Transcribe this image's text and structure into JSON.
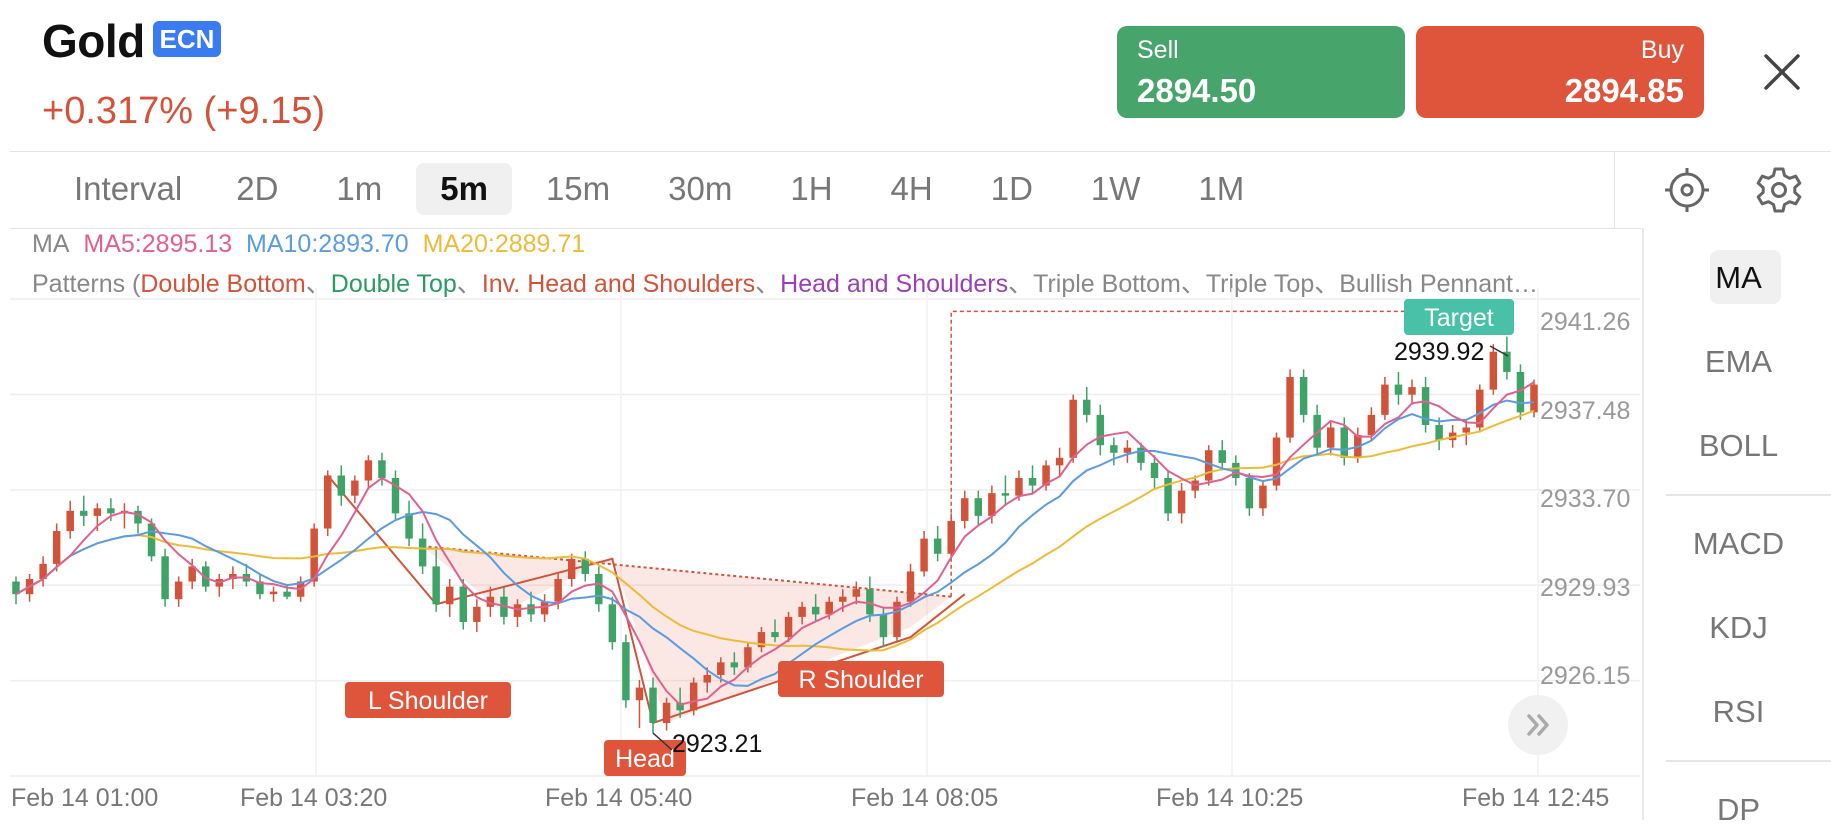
{
  "header": {
    "symbol": "Gold",
    "badge": "ECN",
    "change": "+0.317% (+9.15)",
    "sell_label": "Sell",
    "sell_price": "2894.50",
    "buy_label": "Buy",
    "buy_price": "2894.85",
    "close_icon": "close-icon",
    "colors": {
      "sell": "#47a56c",
      "buy": "#df553b",
      "badge": "#3a7bf0",
      "change": "#d0533a"
    }
  },
  "intervals": {
    "label": "Interval",
    "items": [
      "2D",
      "1m",
      "5m",
      "15m",
      "30m",
      "1H",
      "4H",
      "1D",
      "1W",
      "1M"
    ],
    "selected": "5m"
  },
  "toolbar_icons": [
    "crosshair-target-icon",
    "gear-icon"
  ],
  "indicator_legend": {
    "ma_label": "MA",
    "ma5": "MA5:2895.13",
    "ma10": "MA10:2893.70",
    "ma20": "MA20:2889.71",
    "colors": {
      "ma5": "#e0608f",
      "ma10": "#5b9be0",
      "ma20": "#edbb3a"
    }
  },
  "patterns_legend": {
    "prefix": "Patterns (",
    "double_bottom": "Double Bottom",
    "sep1": "、",
    "double_top": "Double Top",
    "sep2": "、",
    "inv_hs": "Inv. Head and Shoulders",
    "sep3": "、",
    "hs": "Head and Shoulders",
    "rest": "、Triple Bottom、Triple Top、Bullish Pennant…"
  },
  "price_axis": [
    "2941.26",
    "2937.48",
    "2933.70",
    "2929.93",
    "2926.15"
  ],
  "time_axis": [
    "Feb 14 01:00",
    "Feb 14 03:20",
    "Feb 14 05:40",
    "Feb 14 08:05",
    "Feb 14 10:25",
    "Feb 14 12:45"
  ],
  "pattern_annotations": {
    "left_shoulder": "L Shoulder",
    "head": "Head",
    "right_shoulder": "R Shoulder",
    "target": "Target",
    "low_value": "2923.21",
    "target_value": "2939.92"
  },
  "sidebar": {
    "items": [
      "MA",
      "EMA",
      "BOLL",
      "MACD",
      "KDJ",
      "RSI",
      "DP"
    ],
    "selected": "MA"
  },
  "chart_data": {
    "type": "candlestick",
    "ylim": [
      2921.5,
      2943.2
    ],
    "candles": [
      [
        2929.2,
        2929.4,
        2928.3,
        2928.7
      ],
      [
        2928.7,
        2929.5,
        2928.4,
        2929.3
      ],
      [
        2929.3,
        2930.2,
        2929.0,
        2929.9
      ],
      [
        2929.9,
        2931.5,
        2929.6,
        2931.2
      ],
      [
        2931.2,
        2932.4,
        2930.9,
        2932.0
      ],
      [
        2932.0,
        2932.6,
        2931.4,
        2931.8
      ],
      [
        2931.8,
        2932.3,
        2931.2,
        2932.1
      ],
      [
        2932.1,
        2932.5,
        2931.6,
        2931.9
      ],
      [
        2931.9,
        2932.3,
        2931.3,
        2932.0
      ],
      [
        2932.0,
        2932.2,
        2931.1,
        2931.5
      ],
      [
        2931.5,
        2931.7,
        2930.0,
        2930.2
      ],
      [
        2930.2,
        2930.5,
        2928.2,
        2928.5
      ],
      [
        2928.5,
        2929.4,
        2928.2,
        2929.2
      ],
      [
        2929.2,
        2930.1,
        2928.9,
        2929.8
      ],
      [
        2929.8,
        2930.0,
        2928.8,
        2929.0
      ],
      [
        2929.0,
        2929.5,
        2928.6,
        2929.3
      ],
      [
        2929.3,
        2929.8,
        2928.9,
        2929.5
      ],
      [
        2929.5,
        2929.9,
        2929.0,
        2929.2
      ],
      [
        2929.2,
        2929.5,
        2928.5,
        2928.7
      ],
      [
        2928.7,
        2929.0,
        2928.4,
        2928.8
      ],
      [
        2928.8,
        2929.1,
        2928.5,
        2928.6
      ],
      [
        2928.6,
        2929.4,
        2928.4,
        2929.2
      ],
      [
        2929.2,
        2931.5,
        2929.0,
        2931.3
      ],
      [
        2931.3,
        2933.6,
        2931.0,
        2933.4
      ],
      [
        2933.4,
        2933.8,
        2932.2,
        2932.6
      ],
      [
        2932.6,
        2933.4,
        2932.3,
        2933.2
      ],
      [
        2933.2,
        2934.2,
        2932.9,
        2934.0
      ],
      [
        2934.0,
        2934.3,
        2933.0,
        2933.3
      ],
      [
        2933.3,
        2933.6,
        2931.6,
        2931.9
      ],
      [
        2931.9,
        2932.4,
        2930.6,
        2930.9
      ],
      [
        2930.9,
        2931.5,
        2929.5,
        2929.8
      ],
      [
        2929.8,
        2930.5,
        2928.0,
        2928.3
      ],
      [
        2928.3,
        2929.3,
        2927.8,
        2929.0
      ],
      [
        2929.0,
        2929.3,
        2927.3,
        2927.6
      ],
      [
        2927.6,
        2928.5,
        2927.2,
        2928.2
      ],
      [
        2928.2,
        2929.0,
        2927.8,
        2928.6
      ],
      [
        2928.6,
        2929.0,
        2927.5,
        2927.8
      ],
      [
        2927.8,
        2928.5,
        2927.4,
        2928.3
      ],
      [
        2928.3,
        2928.8,
        2927.6,
        2927.9
      ],
      [
        2927.9,
        2928.7,
        2927.6,
        2928.4
      ],
      [
        2928.4,
        2929.5,
        2928.1,
        2929.3
      ],
      [
        2929.3,
        2930.3,
        2929.0,
        2930.1
      ],
      [
        2930.1,
        2930.4,
        2929.2,
        2929.5
      ],
      [
        2929.5,
        2929.8,
        2928.0,
        2928.3
      ],
      [
        2928.3,
        2928.6,
        2926.5,
        2926.8
      ],
      [
        2926.8,
        2927.1,
        2924.2,
        2924.5
      ],
      [
        2924.5,
        2925.3,
        2923.4,
        2925.0
      ],
      [
        2925.0,
        2925.4,
        2923.2,
        2923.6
      ],
      [
        2923.6,
        2924.6,
        2923.3,
        2924.4
      ],
      [
        2924.4,
        2925.0,
        2923.8,
        2924.1
      ],
      [
        2924.1,
        2925.4,
        2923.9,
        2925.2
      ],
      [
        2925.2,
        2925.8,
        2924.8,
        2925.5
      ],
      [
        2925.5,
        2926.2,
        2925.2,
        2926.0
      ],
      [
        2926.0,
        2926.4,
        2925.5,
        2925.8
      ],
      [
        2925.8,
        2926.8,
        2925.6,
        2926.6
      ],
      [
        2926.6,
        2927.4,
        2926.4,
        2927.2
      ],
      [
        2927.2,
        2927.7,
        2926.8,
        2927.0
      ],
      [
        2927.0,
        2928.0,
        2926.8,
        2927.8
      ],
      [
        2927.8,
        2928.4,
        2927.5,
        2928.2
      ],
      [
        2928.2,
        2928.7,
        2927.6,
        2927.9
      ],
      [
        2927.9,
        2928.6,
        2927.7,
        2928.4
      ],
      [
        2928.4,
        2928.9,
        2928.0,
        2928.6
      ],
      [
        2928.6,
        2929.2,
        2928.3,
        2928.9
      ],
      [
        2928.9,
        2929.4,
        2927.6,
        2927.9
      ],
      [
        2927.9,
        2928.2,
        2926.6,
        2927.0
      ],
      [
        2927.0,
        2928.6,
        2926.8,
        2928.4
      ],
      [
        2928.4,
        2929.9,
        2928.2,
        2929.6
      ],
      [
        2929.6,
        2931.2,
        2929.4,
        2930.9
      ],
      [
        2930.9,
        2931.4,
        2930.0,
        2930.3
      ],
      [
        2930.3,
        2931.9,
        2930.1,
        2931.6
      ],
      [
        2931.6,
        2932.8,
        2931.3,
        2932.5
      ],
      [
        2932.5,
        2932.8,
        2931.4,
        2931.8
      ],
      [
        2931.8,
        2933.0,
        2931.5,
        2932.7
      ],
      [
        2932.7,
        2933.4,
        2932.2,
        2932.6
      ],
      [
        2932.6,
        2933.6,
        2932.4,
        2933.3
      ],
      [
        2933.3,
        2933.8,
        2932.7,
        2933.0
      ],
      [
        2933.0,
        2934.0,
        2932.8,
        2933.8
      ],
      [
        2933.8,
        2934.5,
        2933.4,
        2934.1
      ],
      [
        2934.1,
        2936.6,
        2933.9,
        2936.4
      ],
      [
        2936.4,
        2936.9,
        2935.5,
        2935.8
      ],
      [
        2935.8,
        2936.2,
        2934.2,
        2934.6
      ],
      [
        2934.6,
        2934.9,
        2933.8,
        2934.3
      ],
      [
        2934.3,
        2934.8,
        2933.9,
        2934.5
      ],
      [
        2934.5,
        2934.7,
        2933.6,
        2933.9
      ],
      [
        2933.9,
        2934.2,
        2932.9,
        2933.3
      ],
      [
        2933.3,
        2933.6,
        2931.6,
        2931.9
      ],
      [
        2931.9,
        2933.1,
        2931.5,
        2932.8
      ],
      [
        2932.8,
        2933.4,
        2932.5,
        2933.2
      ],
      [
        2933.2,
        2934.6,
        2933.0,
        2934.4
      ],
      [
        2934.4,
        2934.8,
        2933.6,
        2933.9
      ],
      [
        2933.9,
        2934.2,
        2933.0,
        2933.3
      ],
      [
        2933.3,
        2933.5,
        2931.8,
        2932.1
      ],
      [
        2932.1,
        2933.2,
        2931.8,
        2933.0
      ],
      [
        2933.0,
        2935.1,
        2932.8,
        2934.9
      ],
      [
        2934.9,
        2937.6,
        2934.7,
        2937.3
      ],
      [
        2937.3,
        2937.6,
        2935.5,
        2935.8
      ],
      [
        2935.8,
        2936.2,
        2934.2,
        2934.5
      ],
      [
        2934.5,
        2935.6,
        2934.2,
        2935.3
      ],
      [
        2935.3,
        2935.7,
        2933.8,
        2934.1
      ],
      [
        2934.1,
        2935.3,
        2933.9,
        2935.0
      ],
      [
        2935.0,
        2936.1,
        2934.8,
        2935.8
      ],
      [
        2935.8,
        2937.3,
        2935.6,
        2937.0
      ],
      [
        2937.0,
        2937.5,
        2936.2,
        2936.6
      ],
      [
        2936.6,
        2937.2,
        2936.2,
        2936.9
      ],
      [
        2936.9,
        2937.3,
        2935.1,
        2935.4
      ],
      [
        2935.4,
        2935.7,
        2934.4,
        2934.8
      ],
      [
        2934.8,
        2935.4,
        2934.5,
        2935.1
      ],
      [
        2935.1,
        2935.6,
        2934.6,
        2935.3
      ],
      [
        2935.3,
        2937.0,
        2935.1,
        2936.8
      ],
      [
        2936.8,
        2938.6,
        2936.6,
        2938.3
      ],
      [
        2938.3,
        2938.9,
        2937.2,
        2937.5
      ],
      [
        2937.5,
        2937.8,
        2935.6,
        2935.9
      ],
      [
        2935.9,
        2937.2,
        2935.7,
        2937.0
      ]
    ]
  }
}
